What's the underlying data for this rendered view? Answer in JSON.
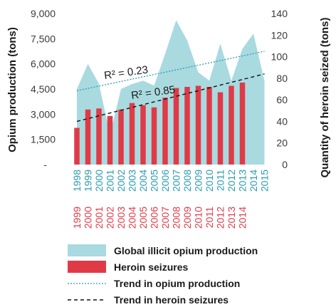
{
  "chart_data": {
    "type": "bar",
    "y_left": {
      "label": "Opium production (tons)",
      "ticks": [
        "-",
        "1,500",
        "3,000",
        "4,500",
        "6,000",
        "7,500",
        "9,000"
      ],
      "range": [
        0,
        9000
      ]
    },
    "y_right": {
      "label": "Quantity of heroin seized (tons)",
      "ticks": [
        "0",
        "20",
        "40",
        "60",
        "80",
        "100",
        "120",
        "140"
      ],
      "range": [
        0,
        140
      ]
    },
    "x_opium_categories": [
      "1998",
      "1999",
      "2000",
      "2001",
      "2002",
      "2003",
      "2004",
      "2005",
      "2006",
      "2007",
      "2008",
      "2009",
      "2010",
      "2011",
      "2012",
      "2013",
      "2014",
      "2015"
    ],
    "x_heroin_categories": [
      "1999",
      "2000",
      "2001",
      "2002",
      "2003",
      "2004",
      "2005",
      "2006",
      "2007",
      "2008",
      "2009",
      "2010",
      "2011",
      "2012",
      "2013",
      "2014"
    ],
    "series": [
      {
        "name": "Global illicit opium production",
        "type": "area",
        "axis": "left",
        "color": "#a9dae0",
        "values": [
          4500,
          6000,
          4800,
          1800,
          4500,
          4800,
          5000,
          4700,
          6600,
          8600,
          7400,
          5500,
          5000,
          7200,
          5000,
          6900,
          7800,
          5000
        ]
      },
      {
        "name": "Heroin seizures",
        "type": "bar",
        "axis": "right",
        "color": "#e03a47",
        "values": [
          34,
          51,
          52,
          45,
          51,
          57,
          55,
          53,
          62,
          71,
          72,
          73,
          72,
          67,
          73,
          76
        ]
      },
      {
        "name": "Trend in opium production",
        "type": "line",
        "style": "dotted",
        "color": "#2a9cb0",
        "label": "R² = 0.23",
        "axis": "left",
        "values": [
          4400,
          6750
        ]
      },
      {
        "name": "Trend in heroin seizures",
        "type": "line",
        "style": "dashed",
        "color": "#111111",
        "label": "R² = 0.85",
        "axis": "right",
        "values": [
          40,
          84
        ]
      }
    ],
    "colors": {
      "opium_labels": "#2a9cb0",
      "heroin_labels": "#e03a47"
    },
    "legend": {
      "position": "bottom"
    },
    "grid": false
  }
}
